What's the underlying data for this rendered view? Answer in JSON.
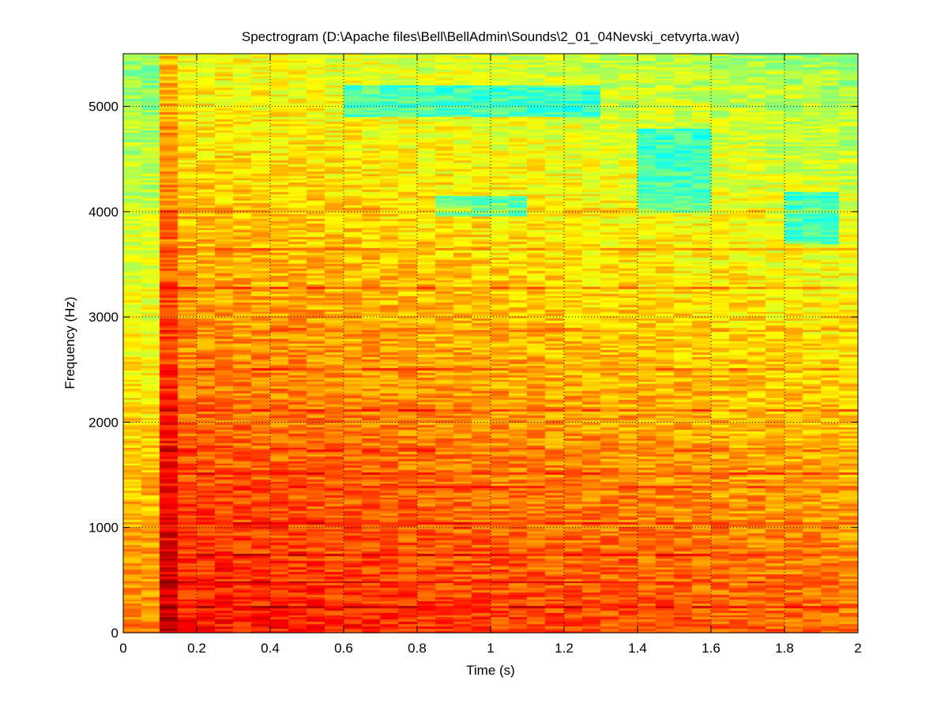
{
  "chart_data": {
    "type": "heatmap",
    "title": "Spectrogram (D:\\Apache files\\Bell\\BellAdmin\\Sounds\\2_01_04Nevski_cetvyrta.wav)",
    "xlabel": "Time (s)",
    "ylabel": "Frequency (Hz)",
    "xlim": [
      0,
      2
    ],
    "ylim": [
      0,
      5500
    ],
    "xticks": [
      0,
      0.2,
      0.4,
      0.6,
      0.8,
      1,
      1.2,
      1.4,
      1.6,
      1.8,
      2
    ],
    "xtick_labels": [
      "0",
      "0.2",
      "0.4",
      "0.6",
      "0.8",
      "1",
      "1.2",
      "1.4",
      "1.6",
      "1.8",
      "2"
    ],
    "yticks": [
      0,
      1000,
      2000,
      3000,
      4000,
      5000
    ],
    "ytick_labels": [
      "0",
      "1000",
      "2000",
      "3000",
      "4000",
      "5000"
    ],
    "grid": true,
    "grid_style": "dotted",
    "colormap": "jet (clipped: cyan–yellow–red)",
    "onset_time_s": 0.08,
    "harmonic_lines_hz": [
      250,
      480,
      740,
      1040,
      1380,
      1520,
      1740,
      2120,
      2500,
      2880,
      3280,
      3640,
      4020
    ],
    "low_energy_regions": [
      {
        "t": [
          0.6,
          1.3
        ],
        "f": [
          4900,
          5200
        ]
      },
      {
        "t": [
          1.4,
          1.6
        ],
        "f": [
          4000,
          4800
        ]
      },
      {
        "t": [
          1.8,
          1.95
        ],
        "f": [
          3700,
          4200
        ]
      },
      {
        "t": [
          0.85,
          1.1
        ],
        "f": [
          3950,
          4150
        ]
      }
    ]
  }
}
